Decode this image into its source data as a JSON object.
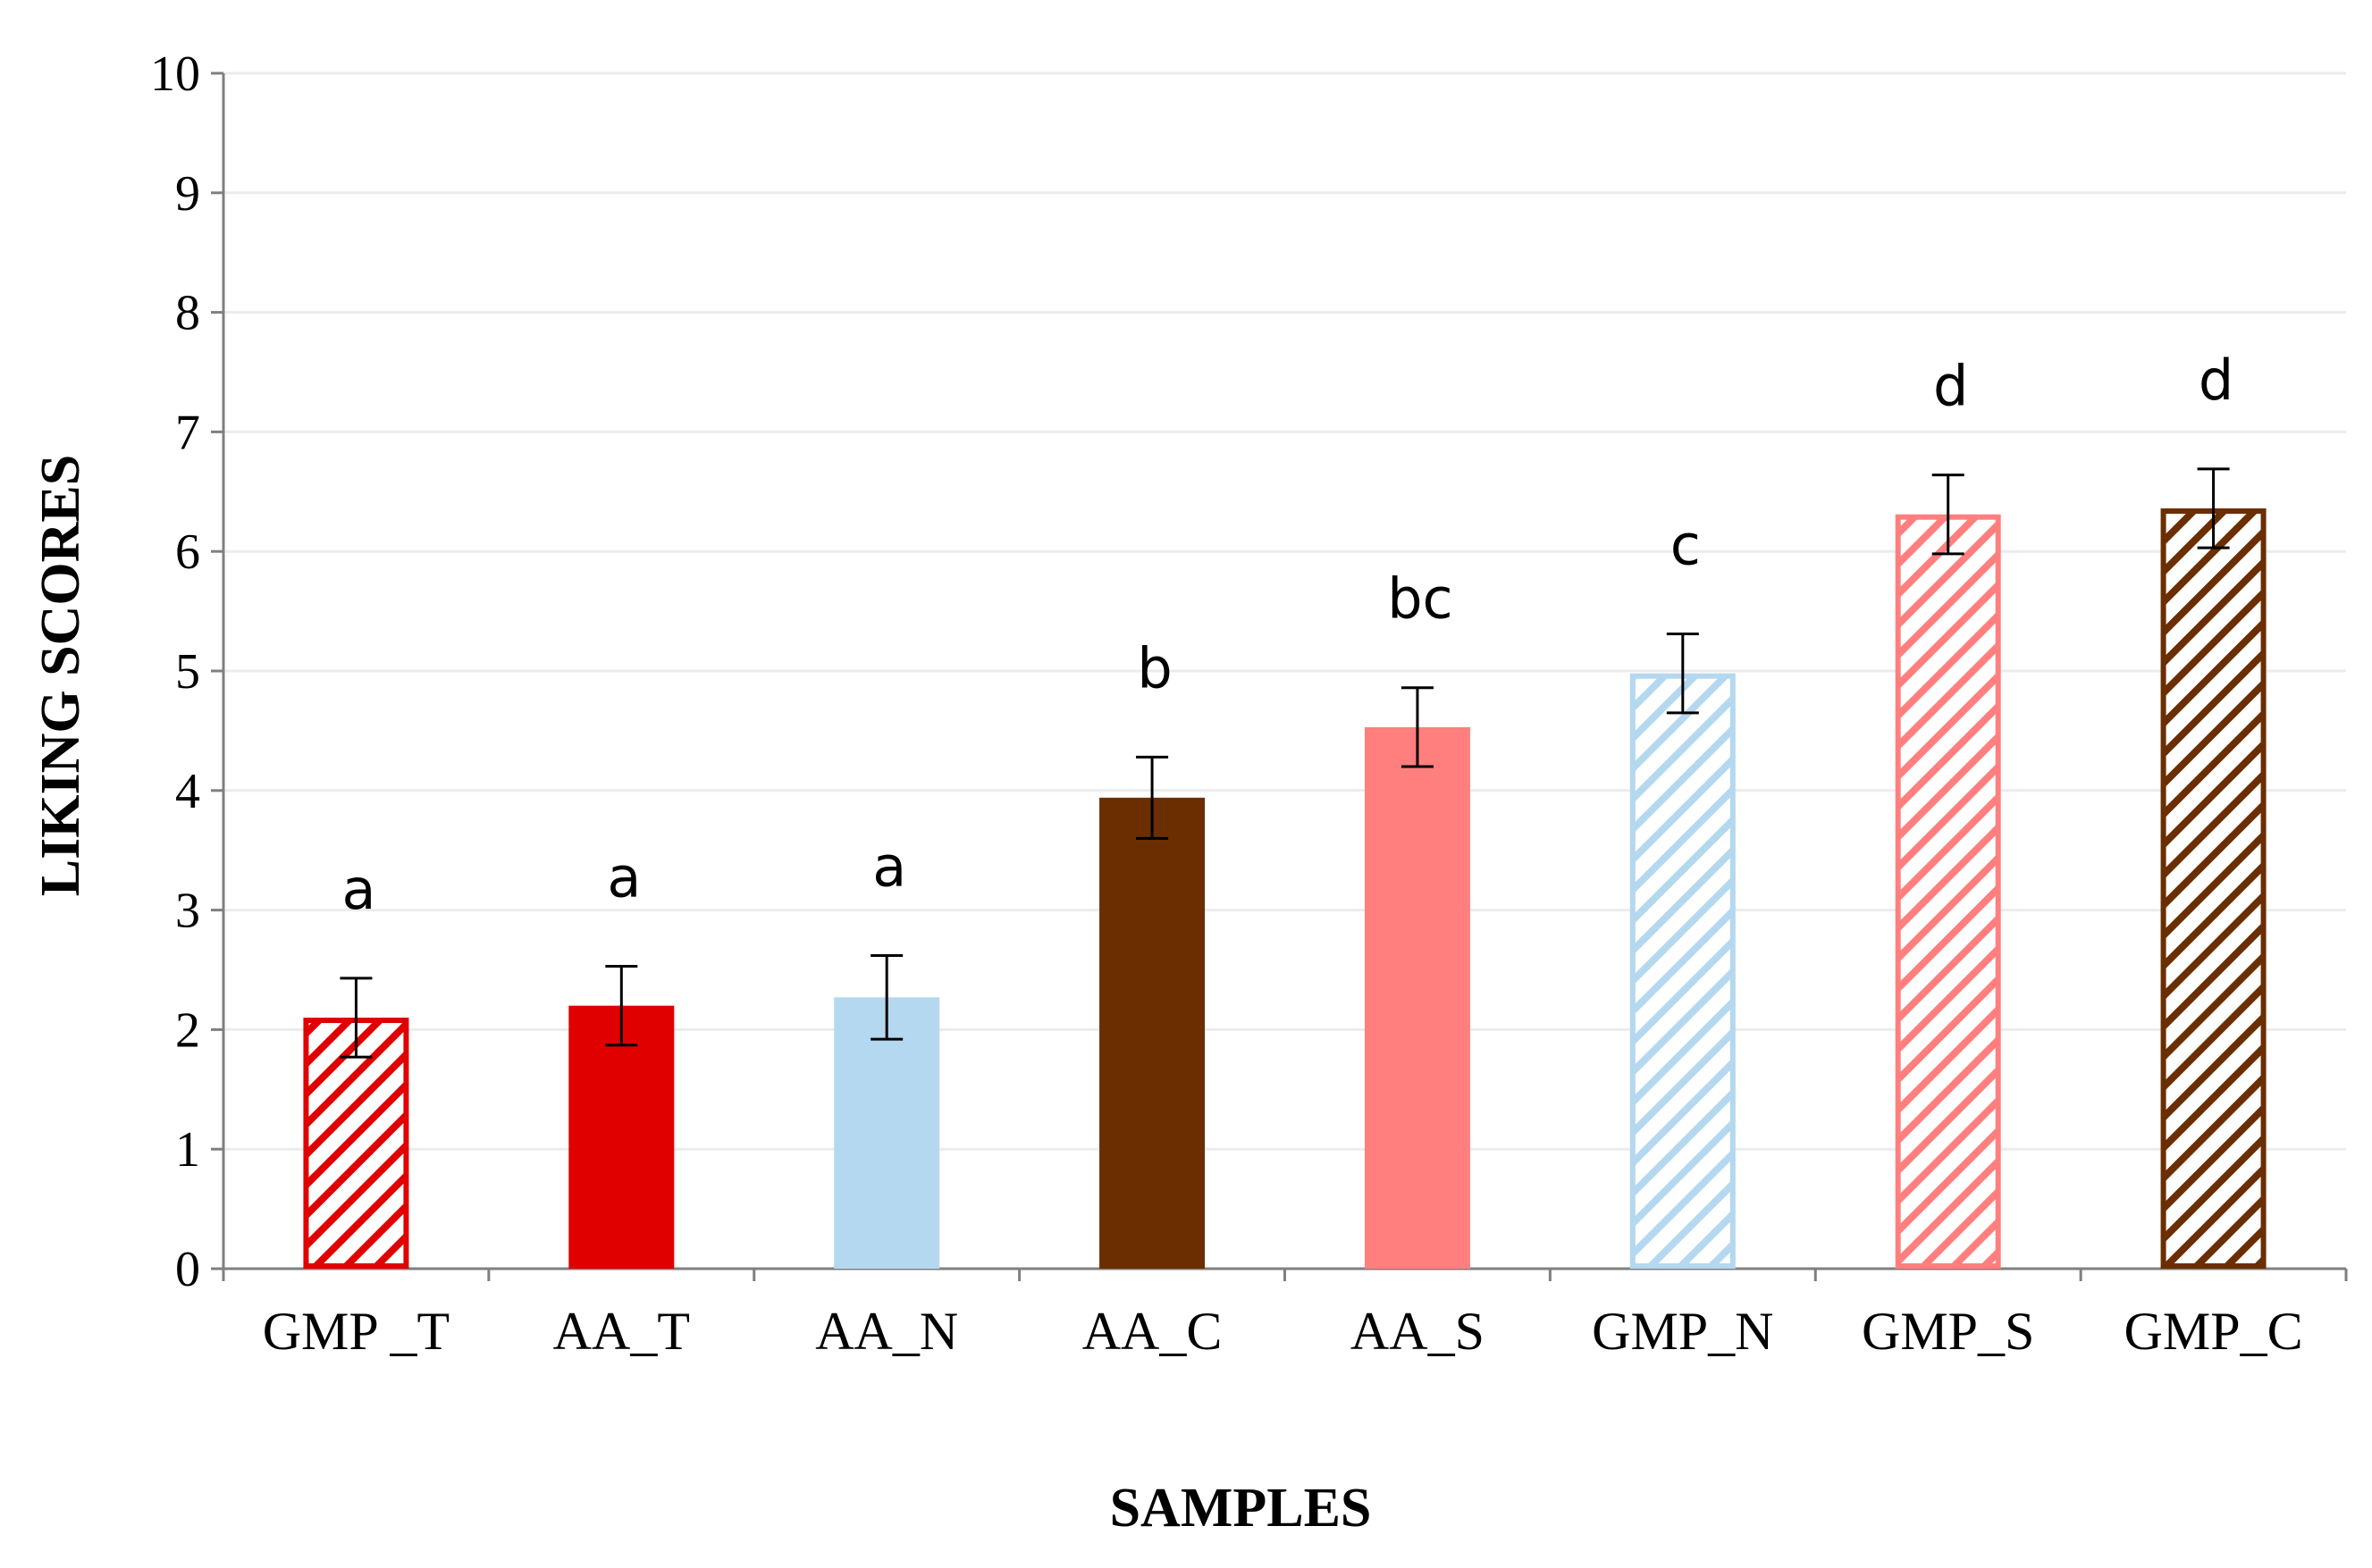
{
  "chart_data": {
    "type": "bar",
    "title": "",
    "xlabel": "SAMPLES",
    "ylabel": "LIKING SCORES",
    "ylim": [
      0,
      10
    ],
    "yticks": [
      0,
      1,
      2,
      3,
      4,
      5,
      6,
      7,
      8,
      9,
      10
    ],
    "grid": true,
    "categories": [
      "GMP _T",
      "AA_T",
      "AA_N",
      "AA_C",
      "AA_S",
      "GMP_N",
      "GMP_S",
      "GMP_C"
    ],
    "values": [
      2.1,
      2.2,
      2.27,
      3.94,
      4.53,
      4.98,
      6.31,
      6.36
    ],
    "errors": [
      0.33,
      0.33,
      0.35,
      0.34,
      0.33,
      0.33,
      0.33,
      0.33
    ],
    "significance_letters": [
      "a",
      "a",
      "a",
      "b",
      "bc",
      "c",
      "d",
      "d"
    ],
    "bar_styles": [
      {
        "color": "#e00000",
        "fill": "hatched"
      },
      {
        "color": "#e00000",
        "fill": "solid"
      },
      {
        "color": "#b4d8ef",
        "fill": "solid"
      },
      {
        "color": "#6b2e00",
        "fill": "solid"
      },
      {
        "color": "#ff7f7f",
        "fill": "solid"
      },
      {
        "color": "#b4d8ef",
        "fill": "hatched"
      },
      {
        "color": "#ff7f7f",
        "fill": "hatched"
      },
      {
        "color": "#6b2e00",
        "fill": "hatched"
      }
    ]
  }
}
